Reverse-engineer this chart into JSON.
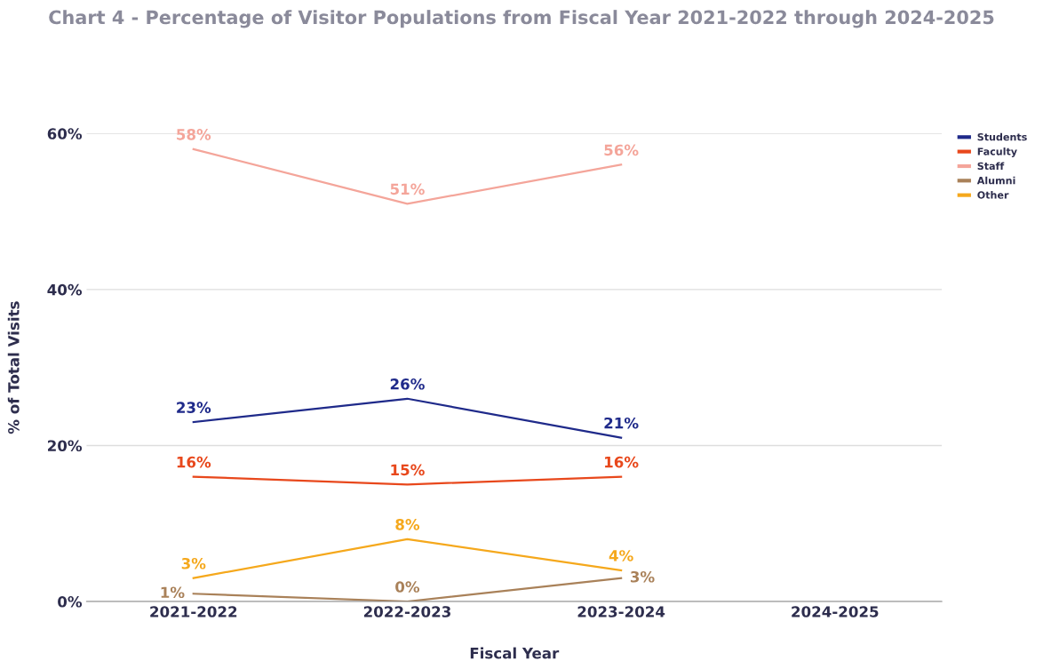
{
  "chart_data": {
    "type": "line",
    "title": "Chart 4 - Percentage of Visitor Populations from Fiscal Year 2021-2022 through 2024-2025",
    "xlabel": "Fiscal Year",
    "ylabel": "% of Total Visits",
    "categories": [
      "2021-2022",
      "2022-2023",
      "2023-2024",
      "2024-2025"
    ],
    "series": [
      {
        "name": "Students",
        "color": "#1f2a8a",
        "values": [
          23,
          26,
          21,
          null
        ],
        "value_labels": [
          "23%",
          "26%",
          "21%",
          null
        ]
      },
      {
        "name": "Faculty",
        "color": "#e8481c",
        "values": [
          16,
          15,
          16,
          null
        ],
        "value_labels": [
          "16%",
          "15%",
          "16%",
          null
        ]
      },
      {
        "name": "Staff",
        "color": "#f4a59a",
        "values": [
          58,
          51,
          56,
          null
        ],
        "value_labels": [
          "58%",
          "51%",
          "56%",
          null
        ]
      },
      {
        "name": "Alumni",
        "color": "#a98159",
        "values": [
          1,
          0,
          3,
          null
        ],
        "value_labels": [
          "1%",
          "0%",
          "3%",
          null
        ]
      },
      {
        "name": "Other",
        "color": "#f5a81c",
        "values": [
          3,
          8,
          4,
          null
        ],
        "value_labels": [
          "3%",
          "8%",
          "4%",
          null
        ]
      }
    ],
    "ylim": [
      0,
      60
    ],
    "yticks": [
      {
        "value": 0,
        "label": "0%"
      },
      {
        "value": 20,
        "label": "20%"
      },
      {
        "value": 40,
        "label": "40%"
      },
      {
        "value": 60,
        "label": "60%"
      }
    ],
    "grid": "y",
    "legend": "top right",
    "marker": "none",
    "line_style": "solid"
  }
}
